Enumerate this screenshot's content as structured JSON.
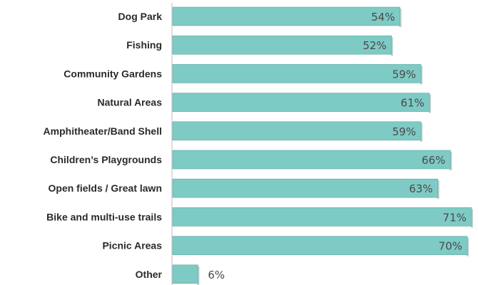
{
  "chart_data": {
    "type": "bar",
    "orientation": "horizontal",
    "categories": [
      "Dog Park",
      "Fishing",
      "Community Gardens",
      "Natural Areas",
      "Amphitheater/Band Shell",
      "Children’s Playgrounds",
      "Open fields / Great lawn",
      "Bike and multi-use trails",
      "Picnic Areas",
      "Other"
    ],
    "values": [
      54,
      52,
      59,
      61,
      59,
      66,
      63,
      71,
      70,
      6
    ],
    "value_labels": [
      "54%",
      "52%",
      "59%",
      "61%",
      "59%",
      "66%",
      "63%",
      "71%",
      "70%",
      "6%"
    ],
    "unit": "%",
    "bar_color": "#7ecac4",
    "grid": false,
    "legend": "none"
  }
}
